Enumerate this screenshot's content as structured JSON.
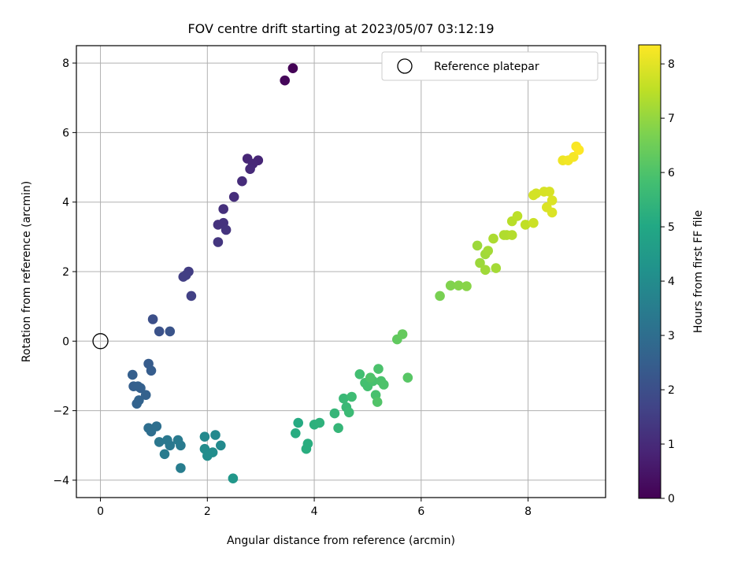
{
  "chart_data": {
    "type": "scatter",
    "title": "FOV centre drift starting at 2023/05/07 03:12:19",
    "xlabel": "Angular distance from reference (arcmin)",
    "ylabel": "Rotation from reference (arcmin)",
    "xlim": [
      -0.45,
      9.45
    ],
    "ylim": [
      -4.5,
      8.5
    ],
    "xticks": [
      0,
      2,
      4,
      6,
      8
    ],
    "yticks": [
      -4,
      -2,
      0,
      2,
      4,
      6,
      8
    ],
    "grid": true,
    "colormap": "viridis",
    "colorbar": {
      "label": "Hours from first FF file",
      "min": 0,
      "max": 8.35,
      "ticks": [
        0,
        1,
        2,
        3,
        4,
        5,
        6,
        7,
        8
      ]
    },
    "legend": {
      "position": "top-right",
      "entries": [
        {
          "label": "Reference platepar",
          "marker": "open-circle",
          "x": 0,
          "y": 0
        }
      ]
    },
    "points": [
      [
        3.6,
        7.85,
        0.05
      ],
      [
        3.45,
        7.5,
        0.15
      ],
      [
        2.75,
        5.25,
        0.9
      ],
      [
        2.95,
        5.2,
        0.9
      ],
      [
        2.85,
        5.1,
        0.95
      ],
      [
        2.8,
        4.95,
        1.0
      ],
      [
        2.65,
        4.6,
        1.05
      ],
      [
        2.5,
        4.15,
        1.1
      ],
      [
        2.3,
        3.8,
        1.15
      ],
      [
        2.3,
        3.4,
        1.2
      ],
      [
        2.2,
        3.35,
        1.2
      ],
      [
        2.35,
        3.2,
        1.25
      ],
      [
        2.2,
        2.85,
        1.3
      ],
      [
        1.65,
        2.0,
        1.5
      ],
      [
        1.6,
        1.9,
        1.55
      ],
      [
        1.55,
        1.85,
        1.55
      ],
      [
        1.7,
        1.3,
        1.6
      ],
      [
        0.98,
        0.63,
        2.0
      ],
      [
        1.1,
        0.28,
        2.1
      ],
      [
        1.3,
        0.28,
        2.15
      ],
      [
        0.9,
        -0.65,
        2.4
      ],
      [
        0.95,
        -0.85,
        2.45
      ],
      [
        0.6,
        -0.97,
        2.5
      ],
      [
        0.62,
        -1.3,
        2.5
      ],
      [
        0.7,
        -1.3,
        2.55
      ],
      [
        0.75,
        -1.35,
        2.55
      ],
      [
        0.85,
        -1.55,
        2.6
      ],
      [
        0.72,
        -1.7,
        2.65
      ],
      [
        0.68,
        -1.8,
        2.65
      ],
      [
        0.9,
        -2.5,
        3.0
      ],
      [
        0.95,
        -2.6,
        3.0
      ],
      [
        1.05,
        -2.45,
        3.05
      ],
      [
        1.1,
        -2.9,
        3.3
      ],
      [
        1.25,
        -2.85,
        3.35
      ],
      [
        1.3,
        -3.0,
        3.35
      ],
      [
        1.45,
        -2.85,
        3.4
      ],
      [
        1.5,
        -3.0,
        3.4
      ],
      [
        1.2,
        -3.25,
        3.45
      ],
      [
        1.5,
        -3.65,
        3.5
      ],
      [
        1.95,
        -2.75,
        3.9
      ],
      [
        2.15,
        -2.7,
        3.9
      ],
      [
        2.25,
        -3.0,
        3.95
      ],
      [
        1.95,
        -3.1,
        4.0
      ],
      [
        2.0,
        -3.3,
        4.05
      ],
      [
        2.1,
        -3.2,
        4.05
      ],
      [
        2.48,
        -3.95,
        4.4
      ],
      [
        3.7,
        -2.35,
        5.1
      ],
      [
        3.65,
        -2.65,
        5.15
      ],
      [
        3.88,
        -2.95,
        5.2
      ],
      [
        3.85,
        -3.1,
        5.2
      ],
      [
        4.0,
        -2.4,
        5.3
      ],
      [
        4.1,
        -2.35,
        5.35
      ],
      [
        4.38,
        -2.08,
        5.5
      ],
      [
        4.45,
        -2.5,
        5.5
      ],
      [
        4.55,
        -1.65,
        5.6
      ],
      [
        4.6,
        -1.9,
        5.6
      ],
      [
        4.65,
        -2.05,
        5.65
      ],
      [
        4.7,
        -1.6,
        5.7
      ],
      [
        4.85,
        -0.95,
        5.8
      ],
      [
        4.95,
        -1.2,
        5.85
      ],
      [
        5.0,
        -1.3,
        5.85
      ],
      [
        5.1,
        -1.15,
        5.9
      ],
      [
        5.15,
        -1.55,
        5.9
      ],
      [
        5.2,
        -0.8,
        5.95
      ],
      [
        5.25,
        -1.15,
        5.95
      ],
      [
        5.3,
        -1.25,
        6.0
      ],
      [
        5.05,
        -1.05,
        6.0
      ],
      [
        5.18,
        -1.75,
        6.05
      ],
      [
        5.75,
        -1.05,
        6.15
      ],
      [
        5.55,
        0.05,
        6.3
      ],
      [
        5.65,
        0.2,
        6.35
      ],
      [
        6.35,
        1.3,
        6.65
      ],
      [
        6.55,
        1.6,
        6.75
      ],
      [
        6.7,
        1.6,
        6.8
      ],
      [
        6.85,
        1.58,
        6.85
      ],
      [
        7.05,
        2.75,
        7.1
      ],
      [
        7.1,
        2.25,
        7.1
      ],
      [
        7.2,
        2.05,
        7.15
      ],
      [
        7.2,
        2.5,
        7.15
      ],
      [
        7.25,
        2.6,
        7.2
      ],
      [
        7.4,
        2.1,
        7.2
      ],
      [
        7.35,
        2.95,
        7.3
      ],
      [
        7.55,
        3.05,
        7.35
      ],
      [
        7.6,
        3.05,
        7.35
      ],
      [
        7.7,
        3.05,
        7.4
      ],
      [
        7.7,
        3.45,
        7.45
      ],
      [
        7.8,
        3.6,
        7.5
      ],
      [
        7.95,
        3.35,
        7.55
      ],
      [
        8.1,
        3.4,
        7.7
      ],
      [
        8.1,
        4.2,
        7.8
      ],
      [
        8.15,
        4.25,
        7.8
      ],
      [
        8.3,
        4.3,
        7.85
      ],
      [
        8.4,
        4.3,
        7.85
      ],
      [
        8.35,
        3.85,
        7.9
      ],
      [
        8.45,
        4.05,
        7.9
      ],
      [
        8.45,
        3.7,
        7.9
      ],
      [
        8.65,
        5.2,
        8.15
      ],
      [
        8.75,
        5.2,
        8.2
      ],
      [
        8.85,
        5.3,
        8.25
      ],
      [
        8.9,
        5.6,
        8.3
      ],
      [
        8.95,
        5.5,
        8.35
      ]
    ]
  }
}
